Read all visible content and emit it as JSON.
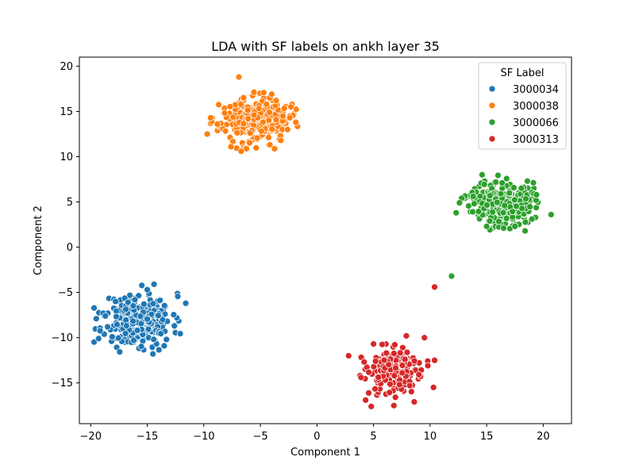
{
  "chart_data": {
    "type": "scatter",
    "title": "LDA with SF labels on ankh layer 35",
    "xlabel": "Component 1",
    "ylabel": "Component 2",
    "xlim": [
      -21.0,
      22.5
    ],
    "ylim": [
      -19.5,
      21.0
    ],
    "xticks": [
      -20,
      -15,
      -10,
      -5,
      0,
      5,
      10,
      15,
      20
    ],
    "yticks": [
      -15,
      -10,
      -5,
      0,
      5,
      10,
      15,
      20
    ],
    "grid": false,
    "legend": {
      "title": "SF Label",
      "position": "top-right"
    },
    "series": [
      {
        "name": "3000034",
        "color": "#1f77b4",
        "cluster": {
          "center": [
            -15.8,
            -8.0
          ],
          "spread": [
            1.5,
            1.45
          ],
          "count": 260,
          "seed": 11
        },
        "points": [
          [
            -19.3,
            -10.1
          ],
          [
            -18.9,
            -7.3
          ],
          [
            -18.7,
            -7.6
          ],
          [
            -14.5,
            -11.8
          ],
          [
            -14.4,
            -4.1
          ],
          [
            -11.6,
            -6.2
          ],
          [
            -12.6,
            -8.7
          ],
          [
            -13.3,
            -10.2
          ],
          [
            -13.5,
            -10.9
          ],
          [
            -18.1,
            -9.9
          ],
          [
            -17.8,
            -6.0
          ],
          [
            -15.0,
            -4.7
          ],
          [
            -16.2,
            -10.3
          ]
        ]
      },
      {
        "name": "3000038",
        "color": "#ff7f0e",
        "cluster": {
          "center": [
            -5.5,
            14.0
          ],
          "spread": [
            1.5,
            1.2
          ],
          "count": 270,
          "seed": 23
        },
        "points": [
          [
            -6.9,
            18.8
          ],
          [
            -9.7,
            12.5
          ],
          [
            -6.7,
            10.6
          ],
          [
            -2.3,
            15.5
          ],
          [
            -3.2,
            11.8
          ],
          [
            -2.6,
            13.0
          ],
          [
            -9.4,
            14.3
          ],
          [
            -7.6,
            11.1
          ],
          [
            -3.6,
            16.2
          ],
          [
            -8.8,
            13.6
          ],
          [
            -4.0,
            16.9
          ],
          [
            -2.4,
            14.3
          ]
        ]
      },
      {
        "name": "3000066",
        "color": "#2ca02c",
        "cluster": {
          "center": [
            16.3,
            4.9
          ],
          "spread": [
            1.35,
            1.25
          ],
          "count": 260,
          "seed": 37
        },
        "points": [
          [
            20.7,
            3.6
          ],
          [
            11.9,
            -3.2
          ],
          [
            14.6,
            8.0
          ],
          [
            12.3,
            3.8
          ],
          [
            18.4,
            1.8
          ],
          [
            19.4,
            5.8
          ],
          [
            15.0,
            2.3
          ],
          [
            13.9,
            4.8
          ],
          [
            17.5,
            2.3
          ],
          [
            18.6,
            7.3
          ],
          [
            12.6,
            4.9
          ],
          [
            16.5,
            2.1
          ]
        ]
      },
      {
        "name": "3000313",
        "color": "#d62728",
        "cluster": {
          "center": [
            6.8,
            -13.6
          ],
          "spread": [
            1.15,
            1.15
          ],
          "count": 250,
          "seed": 53
        },
        "points": [
          [
            10.4,
            -4.4
          ],
          [
            2.8,
            -12.0
          ],
          [
            4.8,
            -17.6
          ],
          [
            4.3,
            -16.9
          ],
          [
            6.8,
            -17.5
          ],
          [
            10.3,
            -15.5
          ],
          [
            10.4,
            -12.5
          ],
          [
            9.5,
            -10.0
          ],
          [
            5.0,
            -10.7
          ],
          [
            8.6,
            -17.1
          ],
          [
            3.9,
            -14.4
          ],
          [
            9.8,
            -13.1
          ],
          [
            7.9,
            -9.8
          ]
        ]
      }
    ]
  }
}
